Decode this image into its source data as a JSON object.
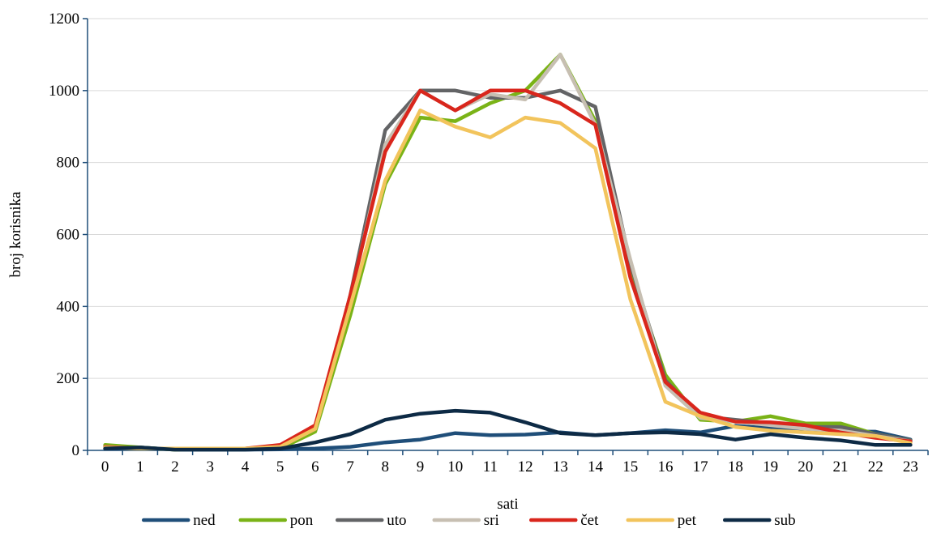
{
  "chart_data": {
    "type": "line",
    "title": "",
    "xlabel": "sati",
    "ylabel": "broj korisnika",
    "x": [
      0,
      1,
      2,
      3,
      4,
      5,
      6,
      7,
      8,
      9,
      10,
      11,
      12,
      13,
      14,
      15,
      16,
      17,
      18,
      19,
      20,
      21,
      22,
      23
    ],
    "xticks": [
      "0",
      "1",
      "2",
      "3",
      "4",
      "5",
      "6",
      "7",
      "8",
      "9",
      "10",
      "11",
      "12",
      "13",
      "14",
      "15",
      "16",
      "17",
      "18",
      "19",
      "20",
      "21",
      "22",
      "23"
    ],
    "ylim": [
      0,
      1200
    ],
    "yticks": [
      0,
      200,
      400,
      600,
      800,
      1000,
      1200
    ],
    "grid": "horizontal",
    "legend": "bottom",
    "series": [
      {
        "name": "ned",
        "color": "#1f4e79",
        "values": [
          5,
          8,
          2,
          2,
          2,
          3,
          5,
          10,
          22,
          30,
          48,
          42,
          44,
          50,
          42,
          48,
          56,
          50,
          68,
          62,
          52,
          52,
          52,
          30
        ]
      },
      {
        "name": "pon",
        "color": "#7ab317",
        "values": [
          15,
          8,
          2,
          5,
          5,
          5,
          52,
          375,
          740,
          925,
          915,
          965,
          1000,
          1100,
          915,
          500,
          210,
          85,
          80,
          95,
          75,
          75,
          45,
          28
        ]
      },
      {
        "name": "uto",
        "color": "#636466",
        "values": [
          10,
          5,
          5,
          5,
          5,
          10,
          60,
          430,
          890,
          1000,
          1000,
          980,
          980,
          1000,
          955,
          520,
          195,
          95,
          85,
          75,
          65,
          65,
          45,
          28
        ]
      },
      {
        "name": "sri",
        "color": "#c7bfb2",
        "values": [
          10,
          5,
          5,
          5,
          5,
          10,
          60,
          420,
          850,
          1000,
          945,
          990,
          975,
          1100,
          905,
          530,
          180,
          90,
          80,
          70,
          60,
          55,
          40,
          25
        ]
      },
      {
        "name": "čet",
        "color": "#d9261c",
        "values": [
          10,
          5,
          5,
          5,
          5,
          15,
          70,
          430,
          830,
          1000,
          945,
          1000,
          1000,
          965,
          905,
          480,
          190,
          105,
          80,
          78,
          70,
          50,
          35,
          25
        ]
      },
      {
        "name": "pet",
        "color": "#f2c45c",
        "values": [
          8,
          5,
          5,
          5,
          5,
          10,
          60,
          400,
          750,
          945,
          900,
          870,
          925,
          910,
          840,
          420,
          135,
          95,
          65,
          55,
          50,
          45,
          40,
          20
        ]
      },
      {
        "name": "sub",
        "color": "#0d2a45",
        "values": [
          5,
          8,
          2,
          2,
          2,
          5,
          22,
          45,
          85,
          102,
          110,
          105,
          78,
          48,
          42,
          48,
          50,
          45,
          30,
          45,
          35,
          28,
          15,
          15
        ]
      }
    ]
  }
}
